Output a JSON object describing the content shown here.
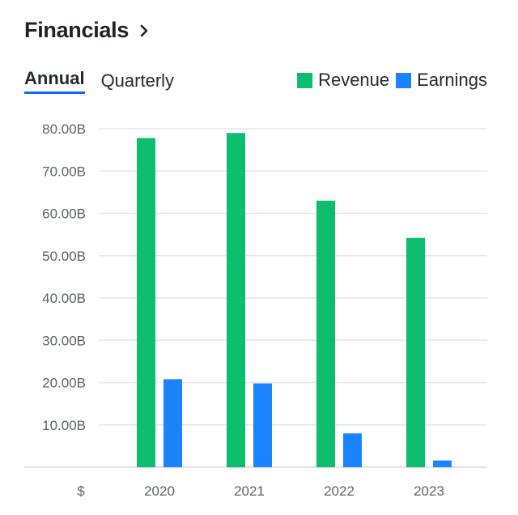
{
  "header": {
    "title": "Financials"
  },
  "tabs": [
    {
      "label": "Annual",
      "active": true
    },
    {
      "label": "Quarterly",
      "active": false
    }
  ],
  "colors": {
    "revenue": "#0ebe6f",
    "earnings": "#1b83ff",
    "grid": "#e3e6ea",
    "tab_underline": "#0f69ff"
  },
  "icons": {
    "header_link": "chevron-right-icon"
  },
  "chart_data": {
    "type": "bar",
    "categories": [
      "2020",
      "2021",
      "2022",
      "2023"
    ],
    "series": [
      {
        "name": "Revenue",
        "values": [
          77.8,
          79.0,
          63.0,
          54.2
        ]
      },
      {
        "name": "Earnings",
        "values": [
          20.8,
          19.8,
          8.0,
          1.6
        ]
      }
    ],
    "y_tick_labels": [
      "80.00B",
      "70.00B",
      "60.00B",
      "50.00B",
      "40.00B",
      "30.00B",
      "20.00B",
      "10.00B"
    ],
    "y_tick_values": [
      80,
      70,
      60,
      50,
      40,
      30,
      20,
      10
    ],
    "ylim": [
      0,
      80
    ],
    "ylabel": "$",
    "grid": true,
    "legend_position": "top-right"
  }
}
